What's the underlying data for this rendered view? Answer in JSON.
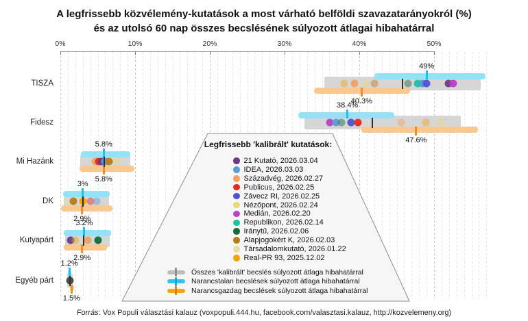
{
  "title": {
    "line1": "A legfrissebb közvélemény-kutatások a most várható belföldi szavazatarányokról (%)",
    "line2": "és az utolsó 60 nap összes becslésének súlyozott átlagai hibahatárral"
  },
  "axis": {
    "tick_labels": [
      "0%",
      "10%",
      "20%",
      "30%",
      "40%",
      "50%"
    ],
    "tick_values": [
      0,
      10,
      20,
      30,
      40,
      50
    ],
    "minor_step": 1,
    "max_extent": 57
  },
  "legend": {
    "title": "Legfrissebb 'kalibrált' kutatások:",
    "pollsters": [
      {
        "name": "21 Kutató",
        "date": "2026.03.04",
        "color": "#6d3a8e"
      },
      {
        "name": "IDEA",
        "date": "2026.03.03",
        "color": "#5b9bd5"
      },
      {
        "name": "Századvég",
        "date": "2026.02.27",
        "color": "#f2a25e"
      },
      {
        "name": "Publicus",
        "date": "2026.02.25",
        "color": "#e8291c"
      },
      {
        "name": "Závecz RI",
        "date": "2026.02.25",
        "color": "#4f52d4"
      },
      {
        "name": "Nézőpont",
        "date": "2026.02.24",
        "color": "#ead977"
      },
      {
        "name": "Medián",
        "date": "2026.02.20",
        "color": "#bc3fc4"
      },
      {
        "name": "Republikon",
        "date": "2026.02.14",
        "color": "#19c3a3"
      },
      {
        "name": "Iránytű",
        "date": "2026.02.06",
        "color": "#176b3f"
      },
      {
        "name": "Alapjogokért K",
        "date": "2026.02.03",
        "color": "#bb7b16"
      },
      {
        "name": "Társadalomkutató",
        "date": "2026.01.22",
        "color": "#e4e0a5"
      },
      {
        "name": "Real-PR 93",
        "date": "2025.12.02",
        "color": "#f3a40a"
      }
    ],
    "averages": [
      {
        "key": "all",
        "label": "Összes 'kalibrált' becslés súlyozott átlaga hibahatárral",
        "capsule": "#bdbdbd",
        "tick": "#8f8f8f"
      },
      {
        "key": "orange-free",
        "label": "Narancstalan becslések súlyozott átlaga hibahatárral",
        "capsule": "#2cc5f1",
        "tick": "#0fa9d8"
      },
      {
        "key": "orange-rich",
        "label": "Narancsgazdag becslések súlyozott átlaga hibahatárral",
        "capsule": "#f9a01e",
        "tick": "#e07e06"
      }
    ]
  },
  "footer": {
    "source_label": "Forrás",
    "source_text": ": Vox Populi választási kalauz (voxpopuli.444.hu, facebook.com/valasztasi.kalauz, http://kozvelemeny.org)"
  },
  "colors": {
    "gray_bar": "#d6d6d6",
    "all_tick": "#2e2e2e",
    "cyan_bar": "#93e2f6",
    "cyan_tick": "#1cc0ec",
    "orange_bar": "#f9c88e",
    "orange_tick": "#f2901d",
    "axis": "#9a9a9a",
    "axis_text": "#333333",
    "label_text": "#111111",
    "legend_bg": "#f6f6f6",
    "legend_border": "#8c8c8c"
  },
  "chart_data": {
    "type": "scatter",
    "subtype": "horizontal_dot_plot_with_weighted_average_error_bars",
    "title": "A legfrissebb közvélemény-kutatások a most várható belföldi szavazatarányokról (%) és az utolsó 60 nap összes becslésének súlyozott átlagai hibahatárral",
    "x_unit": "%",
    "xlim": [
      0,
      57
    ],
    "grid": true,
    "legend_position": "center-bottom callout trapezoid",
    "parties": [
      {
        "name": "TISZA",
        "all": {
          "lo": 35.3,
          "hi": 56.2,
          "avg": 45.8
        },
        "orange_free": {
          "lo": 42.0,
          "hi": 56.9,
          "avg": 49.0,
          "label": "49%"
        },
        "orange_rich": {
          "lo": 33.9,
          "hi": 46.8,
          "avg": 40.3,
          "label": "40.3%"
        },
        "polls": [
          {
            "pollster": "Real-PR 93",
            "value": 38.0,
            "faded": true
          },
          {
            "pollster": "Századvég",
            "value": 39.4,
            "faded": false
          },
          {
            "pollster": "Nézőpont",
            "value": 40.9,
            "faded": true
          },
          {
            "pollster": "Alapjogokért K",
            "value": 42.0,
            "faded": true
          },
          {
            "pollster": "Iránytű",
            "value": 46.5,
            "faded": true
          },
          {
            "pollster": "Republikon",
            "value": 47.8,
            "faded": false
          },
          {
            "pollster": "IDEA",
            "value": 48.4,
            "faded": false
          },
          {
            "pollster": "Závecz RI",
            "value": 49.0,
            "faded": false
          },
          {
            "pollster": "21 Kutató",
            "value": 51.9,
            "faded": false
          },
          {
            "pollster": "Medián",
            "value": 52.6,
            "faded": false
          }
        ]
      },
      {
        "name": "Fidesz",
        "all": {
          "lo": 32.7,
          "hi": 53.6,
          "avg": 41.7
        },
        "orange_free": {
          "lo": 31.8,
          "hi": 44.7,
          "avg": 38.4,
          "label": "38.4%"
        },
        "orange_rich": {
          "lo": 40.3,
          "hi": 55.9,
          "avg": 47.6,
          "label": "47.6%"
        },
        "polls": [
          {
            "pollster": "Medián",
            "value": 36.1,
            "faded": false
          },
          {
            "pollster": "IDEA",
            "value": 36.9,
            "faded": false
          },
          {
            "pollster": "Iránytű",
            "value": 37.6,
            "faded": true
          },
          {
            "pollster": "Závecz RI",
            "value": 38.9,
            "faded": false
          },
          {
            "pollster": "Publicus",
            "value": 39.8,
            "faded": false
          },
          {
            "pollster": "Századvég",
            "value": 45.6,
            "faded": true
          },
          {
            "pollster": "Real-PR 93",
            "value": 48.9,
            "faded": true
          },
          {
            "pollster": "Nézőpont",
            "value": 50.9,
            "faded": true
          }
        ]
      },
      {
        "name": "Mi Hazánk",
        "all": {
          "lo": 2.7,
          "hi": 9.4,
          "avg": 5.9
        },
        "orange_free": {
          "lo": 2.75,
          "hi": 9.4,
          "avg": 5.8,
          "label": "5.8%"
        },
        "orange_rich": {
          "lo": 2.6,
          "hi": 9.9,
          "avg": 5.8,
          "label": "5.8%"
        },
        "polls": [
          {
            "pollster": "Századvég",
            "value": 4.7,
            "faded": false
          },
          {
            "pollster": "Publicus",
            "value": 5.1,
            "faded": false
          },
          {
            "pollster": "21 Kutató",
            "value": 5.5,
            "faded": false
          },
          {
            "pollster": "IDEA",
            "value": 6.0,
            "faded": false
          },
          {
            "pollster": "Alapjogokért K",
            "value": 6.5,
            "faded": false
          },
          {
            "pollster": "Nézőpont",
            "value": 7.5,
            "faded": true
          }
        ]
      },
      {
        "name": "DK",
        "all": {
          "lo": 0.5,
          "hi": 6.5,
          "avg": 3.0
        },
        "orange_free": {
          "lo": 0.4,
          "hi": 6.6,
          "avg": 3.0,
          "label": "3%"
        },
        "orange_rich": {
          "lo": 0.05,
          "hi": 7.0,
          "avg": 2.9,
          "label": "2.9%"
        },
        "polls": [
          {
            "pollster": "Társadalomkutató",
            "value": 0.9,
            "faded": true
          },
          {
            "pollster": "Alapjogokért K",
            "value": 1.7,
            "faded": false
          },
          {
            "pollster": "Real-PR 93",
            "value": 3.0,
            "faded": false
          },
          {
            "pollster": "Publicus",
            "value": 4.0,
            "faded": true
          },
          {
            "pollster": "IDEA",
            "value": 4.9,
            "faded": true
          }
        ]
      },
      {
        "name": "Kutyapárt",
        "all": {
          "lo": 0.6,
          "hi": 6.6,
          "avg": 3.1
        },
        "orange_free": {
          "lo": 0.5,
          "hi": 6.8,
          "avg": 3.2,
          "label": "3.2%"
        },
        "orange_rich": {
          "lo": 0.5,
          "hi": 6.2,
          "avg": 2.9,
          "label": "2.9%"
        },
        "polls": [
          {
            "pollster": "21 Kutató",
            "value": 1.4,
            "faded": false
          },
          {
            "pollster": "Real-PR 93",
            "value": 2.0,
            "faded": true
          },
          {
            "pollster": "Századvég",
            "value": 3.7,
            "faded": false
          },
          {
            "pollster": "Iránytű",
            "value": 5.0,
            "faded": false
          }
        ]
      },
      {
        "name": "Egyéb párt",
        "all": {
          "lo": 0.95,
          "hi": 1.65,
          "avg": 1.3
        },
        "orange_free": {
          "lo": 1.0,
          "hi": 1.45,
          "avg": 1.2,
          "label": "1.2%"
        },
        "orange_rich": {
          "lo": 1.25,
          "hi": 1.8,
          "avg": 1.5,
          "label": "1.5%"
        },
        "polls": [
          {
            "pollster": "",
            "value": 1.3,
            "faded": false,
            "color": "#4a4a4a"
          }
        ]
      }
    ]
  }
}
